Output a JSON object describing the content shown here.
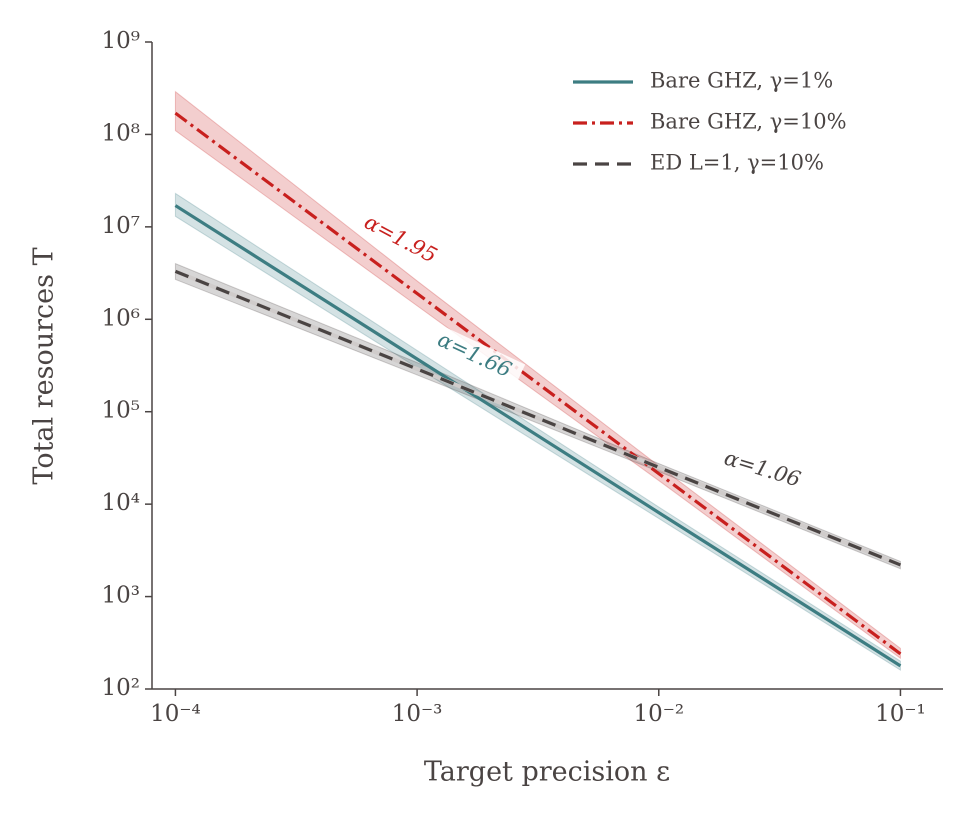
{
  "chart_data": {
    "type": "line",
    "xlabel": "Target precision ε",
    "ylabel": "Total resources T",
    "log_x": true,
    "log_y": true,
    "grid": false,
    "legend": "upper right",
    "xlim": [
      8e-05,
      0.15
    ],
    "ylim": [
      100,
      1000000000
    ],
    "xticks": [
      {
        "value": 0.0001,
        "label": "10⁻⁴"
      },
      {
        "value": 0.001,
        "label": "10⁻³"
      },
      {
        "value": 0.01,
        "label": "10⁻²"
      },
      {
        "value": 0.1,
        "label": "10⁻¹"
      }
    ],
    "yticks": [
      {
        "value": 100,
        "label": "10²"
      },
      {
        "value": 1000,
        "label": "10³"
      },
      {
        "value": 10000,
        "label": "10⁴"
      },
      {
        "value": 100000,
        "label": "10⁵"
      },
      {
        "value": 1000000,
        "label": "10⁶"
      },
      {
        "value": 10000000,
        "label": "10⁷"
      },
      {
        "value": 100000000,
        "label": "10⁸"
      },
      {
        "value": 1000000000,
        "label": "10⁹"
      }
    ],
    "x": [
      0.0001,
      0.001,
      0.01,
      0.1
    ],
    "series": [
      {
        "name": "Bare GHZ, γ=1%",
        "color": "#3d7d82",
        "style": "solid",
        "values": [
          17000000,
          372000,
          8100,
          178
        ],
        "lower": [
          13000000,
          300000,
          7000,
          160
        ],
        "upper": [
          23000000,
          460000,
          9300,
          200
        ]
      },
      {
        "name": "Bare GHZ, γ=10%",
        "color": "#c8201e",
        "style": "dashdot",
        "values": [
          170000000,
          1900000,
          21400,
          240
        ],
        "lower": [
          110000000,
          1400000,
          18000,
          215
        ],
        "upper": [
          290000000,
          2600000,
          26000,
          275
        ]
      },
      {
        "name": "ED L=1, γ=10%",
        "color": "#4a4443",
        "style": "dashed",
        "values": [
          3300000,
          290000,
          25000,
          2200
        ],
        "lower": [
          2700000,
          250000,
          22500,
          2000
        ],
        "upper": [
          4000000,
          340000,
          27500,
          2400
        ]
      }
    ],
    "annotations": [
      {
        "text": "α=1.95",
        "color": "#c8201e"
      },
      {
        "text": "α=1.66",
        "color": "#3d7d82"
      },
      {
        "text": "α=1.06",
        "color": "#4a4443"
      }
    ]
  }
}
